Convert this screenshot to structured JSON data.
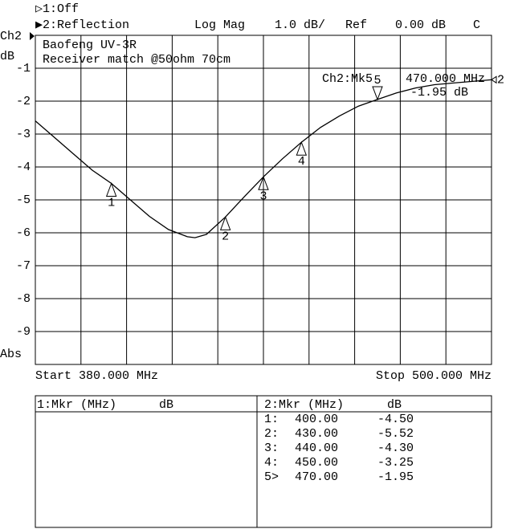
{
  "chart_data": {
    "type": "line",
    "channel1": "▷1:Off",
    "channel2": "▶2:Reflection",
    "format": "Log Mag",
    "scale": "1.0 dB/",
    "ref_label": "Ref",
    "ref_value": "0.00 dB",
    "cal": "C",
    "channel_label": "Ch2",
    "y_label": "dB",
    "y_label_bottom": "Abs",
    "annotation_title": "Baofeng UV-3R",
    "annotation_subtitle": "Receiver match @50ohm 70cm",
    "readout_marker": "Ch2:Mk5",
    "readout_freq": "470.000 MHz",
    "readout_value": "-1.95 dB",
    "start_label": "Start 380.000 MHz",
    "stop_label": "Stop 500.000 MHz",
    "trace_label": "2",
    "xlim": [
      380,
      500
    ],
    "ylim": [
      -10,
      0
    ],
    "yticks": [
      -1,
      -2,
      -3,
      -4,
      -5,
      -6,
      -7,
      -8,
      -9
    ],
    "grid": true,
    "color": "#000000",
    "x": [
      380,
      385,
      390,
      395,
      400,
      405,
      410,
      415,
      420,
      422,
      425,
      430,
      435,
      440,
      445,
      450,
      455,
      460,
      465,
      470,
      475,
      480,
      485,
      490,
      495,
      500
    ],
    "values": [
      -2.6,
      -3.1,
      -3.6,
      -4.1,
      -4.5,
      -5.0,
      -5.5,
      -5.9,
      -6.12,
      -6.15,
      -6.05,
      -5.52,
      -4.9,
      -4.3,
      -3.75,
      -3.25,
      -2.8,
      -2.45,
      -2.15,
      -1.95,
      -1.75,
      -1.6,
      -1.5,
      -1.45,
      -1.4,
      -1.35
    ],
    "markers": [
      {
        "label": "1",
        "x": 400,
        "y": -4.5,
        "active": false
      },
      {
        "label": "2",
        "x": 430,
        "y": -5.52,
        "active": false
      },
      {
        "label": "3",
        "x": 440,
        "y": -4.3,
        "active": false
      },
      {
        "label": "4",
        "x": 450,
        "y": -3.25,
        "active": false
      },
      {
        "label": "5",
        "x": 470,
        "y": -1.95,
        "active": true
      }
    ]
  },
  "table": {
    "left_header": [
      "1:Mkr (MHz)",
      "dB"
    ],
    "right_header": [
      "2:Mkr (MHz)",
      "dB"
    ],
    "rows": [
      [
        "1:",
        "400.00",
        "-4.50"
      ],
      [
        "2:",
        "430.00",
        "-5.52"
      ],
      [
        "3:",
        "440.00",
        "-4.30"
      ],
      [
        "4:",
        "450.00",
        "-3.25"
      ],
      [
        "5>",
        "470.00",
        "-1.95"
      ]
    ]
  }
}
